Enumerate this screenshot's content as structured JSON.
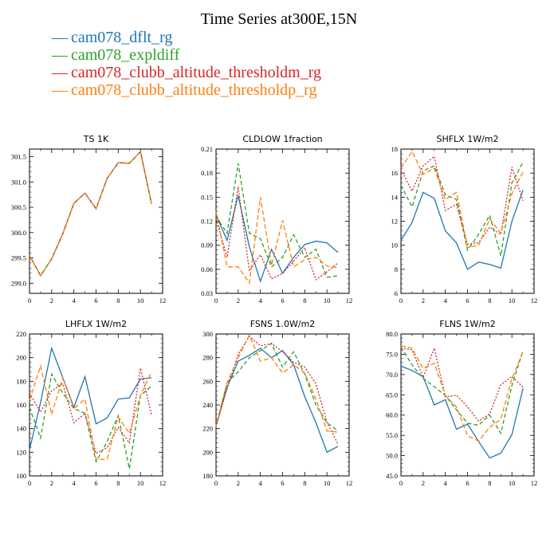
{
  "title": "Time Series at300E,15N",
  "legend": [
    {
      "name": "cam078_dflt_rg",
      "color": "#1f77b4"
    },
    {
      "name": "cam078_expldiff",
      "color": "#2ca02c"
    },
    {
      "name": "cam078_clubb_altitude_thresholdm_rg",
      "color": "#d62728"
    },
    {
      "name": "cam078_clubb_altitude_thresholdp_rg",
      "color": "#ff7f0e"
    }
  ],
  "chart_data": [
    {
      "type": "line",
      "title": "TS   1K",
      "x": [
        0,
        1,
        2,
        3,
        4,
        5,
        6,
        7,
        8,
        9,
        10,
        11
      ],
      "xlim": [
        0,
        12
      ],
      "xticks": [
        0,
        2,
        4,
        6,
        8,
        10,
        12
      ],
      "ylim": [
        298.8,
        301.65
      ],
      "yticks": [
        299.0,
        299.5,
        300.0,
        300.5,
        301.0,
        301.5
      ],
      "ytick_labels": [
        "299.0",
        "299.5",
        "300.0",
        "300.5",
        "301.0",
        "301.5"
      ],
      "series": [
        {
          "name": "cam078_dflt_rg",
          "values": [
            299.55,
            299.15,
            299.48,
            299.98,
            300.58,
            300.78,
            300.47,
            301.07,
            301.38,
            301.37,
            301.6,
            300.57
          ]
        },
        {
          "name": "cam078_expldiff",
          "values": [
            299.55,
            299.15,
            299.48,
            299.98,
            300.58,
            300.78,
            300.47,
            301.07,
            301.38,
            301.37,
            301.6,
            300.57
          ]
        },
        {
          "name": "cam078_clubb_altitude_thresholdm_rg",
          "values": [
            299.55,
            299.15,
            299.48,
            299.98,
            300.58,
            300.78,
            300.47,
            301.07,
            301.38,
            301.37,
            301.6,
            300.57
          ]
        },
        {
          "name": "cam078_clubb_altitude_thresholdp_rg",
          "values": [
            299.55,
            299.15,
            299.48,
            299.98,
            300.58,
            300.78,
            300.47,
            301.07,
            301.38,
            301.37,
            301.6,
            300.57
          ]
        }
      ]
    },
    {
      "type": "line",
      "title": "CLDLOW   1fraction",
      "x": [
        0,
        1,
        2,
        3,
        4,
        5,
        6,
        7,
        8,
        9,
        10,
        11
      ],
      "xlim": [
        0,
        12
      ],
      "xticks": [
        0,
        2,
        4,
        6,
        8,
        10,
        12
      ],
      "ylim": [
        0.03,
        0.21
      ],
      "yticks": [
        0.03,
        0.06,
        0.09,
        0.12,
        0.15,
        0.18,
        0.21
      ],
      "ytick_labels": [
        "0.03",
        "0.06",
        "0.09",
        "0.12",
        "0.15",
        "0.18",
        "0.21"
      ],
      "series": [
        {
          "name": "cam078_dflt_rg",
          "values": [
            0.128,
            0.096,
            0.152,
            0.088,
            0.045,
            0.085,
            0.055,
            0.075,
            0.091,
            0.095,
            0.093,
            0.081
          ]
        },
        {
          "name": "cam078_expldiff",
          "values": [
            0.126,
            0.105,
            0.192,
            0.105,
            0.098,
            0.063,
            0.075,
            0.103,
            0.075,
            0.085,
            0.05,
            0.052
          ]
        },
        {
          "name": "cam078_clubb_altitude_thresholdm_rg",
          "values": [
            0.123,
            0.075,
            0.163,
            0.058,
            0.078,
            0.048,
            0.055,
            0.07,
            0.087,
            0.047,
            0.057,
            0.068
          ]
        },
        {
          "name": "cam078_clubb_altitude_thresholdp_rg",
          "values": [
            0.132,
            0.063,
            0.063,
            0.043,
            0.15,
            0.065,
            0.121,
            0.063,
            0.072,
            0.075,
            0.064,
            0.062
          ]
        }
      ]
    },
    {
      "type": "line",
      "title": "SHFLX   1W/m2",
      "x": [
        0,
        1,
        2,
        3,
        4,
        5,
        6,
        7,
        8,
        9,
        10,
        11
      ],
      "xlim": [
        0,
        12
      ],
      "xticks": [
        0,
        2,
        4,
        6,
        8,
        10,
        12
      ],
      "ylim": [
        6,
        18
      ],
      "yticks": [
        6,
        8,
        10,
        12,
        14,
        16,
        18
      ],
      "ytick_labels": [
        "6",
        "8",
        "10",
        "12",
        "14",
        "16",
        "18"
      ],
      "series": [
        {
          "name": "cam078_dflt_rg",
          "values": [
            10.4,
            11.9,
            14.4,
            13.9,
            11.2,
            10.2,
            8.0,
            8.6,
            8.4,
            8.1,
            12.0,
            14.6
          ]
        },
        {
          "name": "cam078_expldiff",
          "values": [
            15.0,
            13.2,
            16.2,
            16.6,
            14.2,
            13.8,
            9.6,
            10.9,
            12.5,
            9.1,
            15.2,
            16.9
          ]
        },
        {
          "name": "cam078_clubb_altitude_thresholdm_rg",
          "values": [
            16.3,
            14.5,
            16.6,
            17.4,
            12.9,
            13.4,
            10.1,
            10.2,
            11.5,
            10.9,
            16.5,
            13.7
          ]
        },
        {
          "name": "cam078_clubb_altitude_thresholdp_rg",
          "values": [
            16.4,
            17.8,
            15.9,
            16.4,
            13.8,
            14.4,
            9.8,
            10.0,
            12.2,
            11.0,
            14.3,
            16.1
          ]
        }
      ]
    },
    {
      "type": "line",
      "title": "LHFLX   1W/m2",
      "x": [
        0,
        1,
        2,
        3,
        4,
        5,
        6,
        7,
        8,
        9,
        10,
        11
      ],
      "xlim": [
        0,
        12
      ],
      "xticks": [
        0,
        2,
        4,
        6,
        8,
        10,
        12
      ],
      "ylim": [
        100,
        220
      ],
      "yticks": [
        100,
        120,
        140,
        160,
        180,
        200,
        220
      ],
      "ytick_labels": [
        "100",
        "120",
        "140",
        "160",
        "180",
        "200",
        "220"
      ],
      "series": [
        {
          "name": "cam078_dflt_rg",
          "values": [
            122,
            162,
            208,
            183,
            158,
            184,
            144,
            149,
            165,
            166,
            182,
            183
          ]
        },
        {
          "name": "cam078_expldiff",
          "values": [
            158,
            132,
            186,
            170,
            157,
            153,
            112,
            129,
            151,
            106,
            168,
            176
          ]
        },
        {
          "name": "cam078_clubb_altitude_thresholdm_rg",
          "values": [
            170,
            154,
            172,
            178,
            145,
            153,
            119,
            124,
            141,
            128,
            191,
            152
          ]
        },
        {
          "name": "cam078_clubb_altitude_thresholdp_rg",
          "values": [
            164,
            193,
            152,
            183,
            157,
            165,
            114,
            114,
            150,
            136,
            168,
            188
          ]
        }
      ]
    },
    {
      "type": "line",
      "title": "FSNS   1.0W/m2",
      "x": [
        0,
        1,
        2,
        3,
        4,
        5,
        6,
        7,
        8,
        9,
        10,
        11
      ],
      "xlim": [
        0,
        12
      ],
      "xticks": [
        0,
        2,
        4,
        6,
        8,
        10,
        12
      ],
      "ylim": [
        180,
        300
      ],
      "yticks": [
        180,
        200,
        220,
        240,
        260,
        280,
        300
      ],
      "ytick_labels": [
        "180",
        "200",
        "220",
        "240",
        "260",
        "280",
        "300"
      ],
      "series": [
        {
          "name": "cam078_dflt_rg",
          "values": [
            222,
            255,
            277,
            282,
            288,
            280,
            286,
            274,
            247,
            225,
            200,
            205
          ]
        },
        {
          "name": "cam078_expldiff",
          "values": [
            222,
            259,
            268,
            280,
            286,
            292,
            272,
            285,
            266,
            240,
            225,
            218
          ]
        },
        {
          "name": "cam078_clubb_altitude_thresholdm_rg",
          "values": [
            222,
            254,
            283,
            298,
            290,
            292,
            285,
            276,
            272,
            258,
            225,
            207
          ]
        },
        {
          "name": "cam078_clubb_altitude_thresholdp_rg",
          "values": [
            222,
            259,
            280,
            299,
            277,
            280,
            267,
            274,
            267,
            245,
            218,
            217
          ]
        }
      ]
    },
    {
      "type": "line",
      "title": "FLNS   1W/m2",
      "x": [
        0,
        1,
        2,
        3,
        4,
        5,
        6,
        7,
        8,
        9,
        10,
        11
      ],
      "xlim": [
        0,
        12
      ],
      "xticks": [
        0,
        2,
        4,
        6,
        8,
        10,
        12
      ],
      "ylim": [
        45,
        80
      ],
      "yticks": [
        45,
        50,
        55,
        60,
        65,
        70,
        75,
        80
      ],
      "ytick_labels": [
        "45.0",
        "50.0",
        "55.0",
        "60.0",
        "65.0",
        "70.0",
        "75.0",
        "80.0"
      ],
      "series": [
        {
          "name": "cam078_dflt_rg",
          "values": [
            72.1,
            71.0,
            69.5,
            62.5,
            63.8,
            56.5,
            57.8,
            53.5,
            49.4,
            50.6,
            55.2,
            66.6
          ]
        },
        {
          "name": "cam078_expldiff",
          "values": [
            76.8,
            72.4,
            69.0,
            67.0,
            64.8,
            61.3,
            58.0,
            57.5,
            60.0,
            55.5,
            67.3,
            75.9
          ]
        },
        {
          "name": "cam078_clubb_altitude_thresholdm_rg",
          "values": [
            76.5,
            76.1,
            69.3,
            76.5,
            64.5,
            64.9,
            62.0,
            58.5,
            60.3,
            67.5,
            69.5,
            66.9
          ]
        },
        {
          "name": "cam078_clubb_altitude_thresholdp_rg",
          "values": [
            77.1,
            76.5,
            71.5,
            72.8,
            64.8,
            62.0,
            54.9,
            53.6,
            57.0,
            59.0,
            69.0,
            75.6
          ]
        }
      ]
    }
  ]
}
